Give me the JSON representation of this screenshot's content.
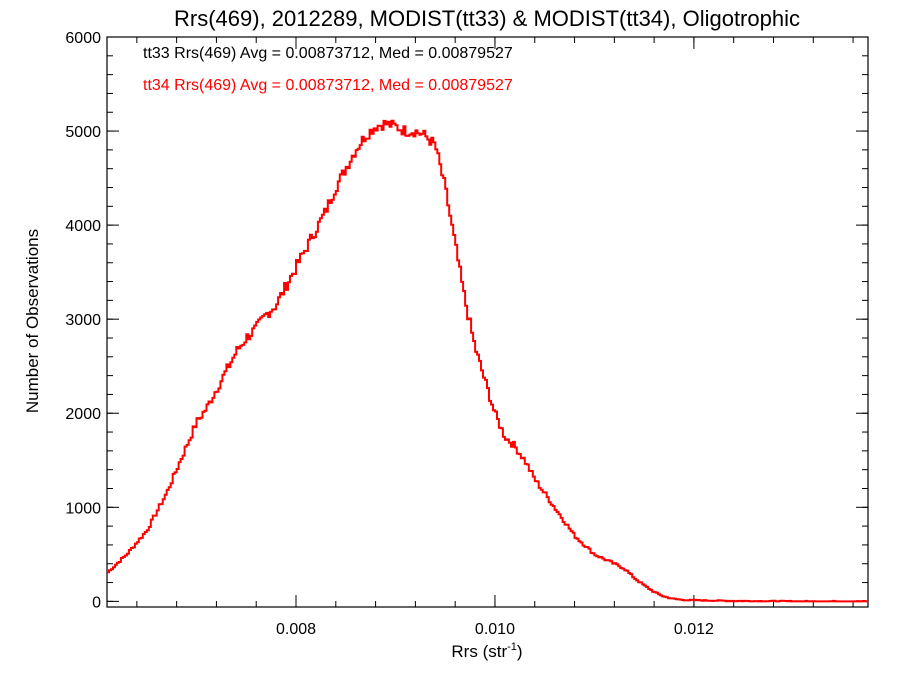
{
  "chart_data": {
    "type": "histogram",
    "title": "Rrs(469), 2012289, MODIST(tt33) & MODIST(tt34), Oligotrophic",
    "xlabel": "Rrs (str",
    "xlabel_sup": "-1",
    "xlabel_end": ")",
    "ylabel": "Number of Observations",
    "xlim": [
      0.0061,
      0.01375
    ],
    "ylim": [
      -60,
      6000
    ],
    "x_ticks": [
      0.008,
      0.01,
      0.012
    ],
    "x_tick_labels": [
      "0.008",
      "0.010",
      "0.012"
    ],
    "x_minor_step": 0.0004,
    "y_ticks": [
      0,
      1000,
      2000,
      3000,
      4000,
      5000,
      6000
    ],
    "y_tick_labels": [
      "0",
      "1000",
      "2000",
      "3000",
      "4000",
      "5000",
      "6000"
    ],
    "y_minor_step": 200,
    "grid": false,
    "annotations": [
      {
        "text": "tt33 Rrs(469) Avg = 0.00873712, Med = 0.00879527",
        "color": "#000000"
      },
      {
        "text": "tt34 Rrs(469) Avg = 0.00873712, Med = 0.00879527",
        "color": "#ff0000"
      }
    ],
    "series": [
      {
        "color": "#ff0000",
        "x": [
          0.0061,
          0.0063,
          0.0065,
          0.0066,
          0.0067,
          0.0068,
          0.0069,
          0.007,
          0.0071,
          0.0072,
          0.0073,
          0.0074,
          0.0075,
          0.0076,
          0.0077,
          0.0078,
          0.0079,
          0.008,
          0.0081,
          0.0082,
          0.0083,
          0.0084,
          0.0085,
          0.0086,
          0.0087,
          0.0088,
          0.0089,
          0.009,
          0.0091,
          0.0092,
          0.0093,
          0.0094,
          0.0095,
          0.0096,
          0.0097,
          0.0098,
          0.0099,
          0.01,
          0.0101,
          0.0102,
          0.0103,
          0.0104,
          0.0105,
          0.0106,
          0.0107,
          0.0108,
          0.0109,
          0.011,
          0.0111,
          0.0112,
          0.0113,
          0.0114,
          0.0115,
          0.0116,
          0.0117,
          0.0118,
          0.0119,
          0.012,
          0.0122,
          0.0124,
          0.0126,
          0.0128,
          0.013,
          0.0132,
          0.01375
        ],
        "y": [
          300,
          500,
          750,
          950,
          1150,
          1400,
          1650,
          1900,
          2050,
          2250,
          2450,
          2650,
          2800,
          2900,
          3050,
          3150,
          3350,
          3550,
          3750,
          3950,
          4150,
          4400,
          4600,
          4800,
          4950,
          5050,
          5080,
          5050,
          5000,
          5000,
          4950,
          4850,
          4400,
          3800,
          3200,
          2700,
          2350,
          2000,
          1750,
          1650,
          1500,
          1300,
          1150,
          1000,
          850,
          700,
          600,
          500,
          450,
          400,
          350,
          250,
          170,
          100,
          50,
          25,
          15,
          12,
          8,
          5,
          3,
          2,
          1,
          0,
          0
        ]
      }
    ]
  }
}
